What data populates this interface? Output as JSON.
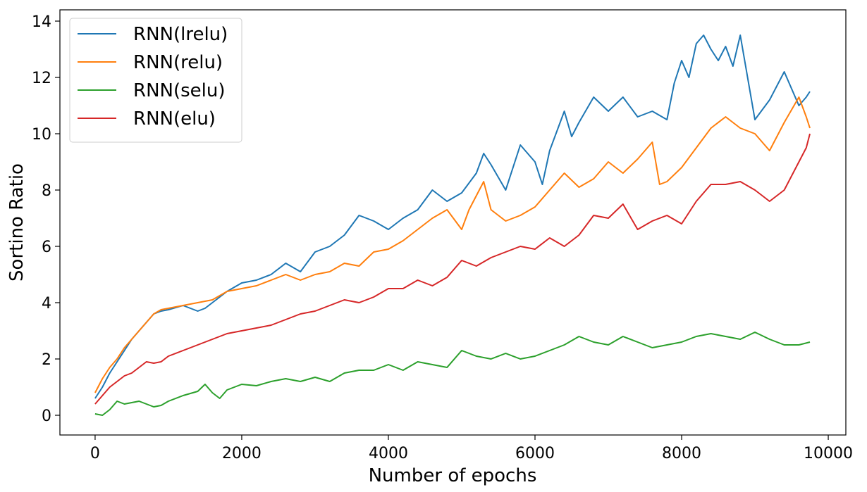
{
  "chart_data": {
    "type": "line",
    "title": "",
    "xlabel": "Number of epochs",
    "ylabel": "Sortino Ratio",
    "xlim": [
      -480,
      10240
    ],
    "ylim": [
      -0.7,
      14.4
    ],
    "xticks": [
      0,
      2000,
      4000,
      6000,
      8000,
      10000
    ],
    "yticks": [
      0,
      2,
      4,
      6,
      8,
      10,
      12,
      14
    ],
    "xtick_labels": [
      "0",
      "2000",
      "4000",
      "6000",
      "8000",
      "10000"
    ],
    "ytick_labels": [
      "0",
      "2",
      "4",
      "6",
      "8",
      "10",
      "12",
      "14"
    ],
    "grid": false,
    "legend_position": "top-left",
    "series": [
      {
        "name": "RNN(lrelu)",
        "color": "#1f77b4",
        "x": [
          0,
          100,
          200,
          300,
          400,
          500,
          600,
          700,
          800,
          900,
          1000,
          1200,
          1400,
          1500,
          1600,
          1800,
          2000,
          2200,
          2400,
          2600,
          2800,
          3000,
          3200,
          3400,
          3600,
          3800,
          4000,
          4200,
          4400,
          4600,
          4800,
          5000,
          5200,
          5300,
          5400,
          5600,
          5800,
          6000,
          6100,
          6200,
          6400,
          6500,
          6600,
          6800,
          7000,
          7200,
          7400,
          7600,
          7800,
          7900,
          8000,
          8100,
          8200,
          8300,
          8400,
          8500,
          8600,
          8700,
          8800,
          9000,
          9200,
          9400,
          9500,
          9600,
          9700,
          9750
        ],
        "y": [
          0.6,
          1.0,
          1.5,
          1.9,
          2.3,
          2.7,
          3.0,
          3.3,
          3.6,
          3.7,
          3.75,
          3.9,
          3.7,
          3.8,
          4.0,
          4.4,
          4.7,
          4.8,
          5.0,
          5.4,
          5.1,
          5.8,
          6.0,
          6.4,
          7.1,
          6.9,
          6.6,
          7.0,
          7.3,
          8.0,
          7.6,
          7.9,
          8.6,
          9.3,
          8.9,
          8.0,
          9.6,
          9.0,
          8.2,
          9.4,
          10.8,
          9.9,
          10.4,
          11.3,
          10.8,
          11.3,
          10.6,
          10.8,
          10.5,
          11.8,
          12.6,
          12.0,
          13.2,
          13.5,
          13.0,
          12.6,
          13.1,
          12.4,
          13.5,
          10.5,
          11.2,
          12.2,
          11.6,
          11.0,
          11.3,
          11.5
        ]
      },
      {
        "name": "RNN(relu)",
        "color": "#ff7f0e",
        "x": [
          0,
          100,
          200,
          300,
          400,
          500,
          600,
          700,
          800,
          900,
          1000,
          1200,
          1400,
          1600,
          1800,
          2000,
          2200,
          2400,
          2600,
          2800,
          3000,
          3200,
          3400,
          3600,
          3800,
          4000,
          4200,
          4400,
          4600,
          4800,
          5000,
          5100,
          5300,
          5400,
          5600,
          5800,
          6000,
          6200,
          6400,
          6600,
          6800,
          7000,
          7200,
          7400,
          7600,
          7700,
          7800,
          8000,
          8200,
          8400,
          8600,
          8800,
          9000,
          9200,
          9400,
          9600,
          9700,
          9750
        ],
        "y": [
          0.8,
          1.3,
          1.7,
          2.0,
          2.4,
          2.7,
          3.0,
          3.3,
          3.6,
          3.75,
          3.8,
          3.9,
          4.0,
          4.1,
          4.4,
          4.5,
          4.6,
          4.8,
          5.0,
          4.8,
          5.0,
          5.1,
          5.4,
          5.3,
          5.8,
          5.9,
          6.2,
          6.6,
          7.0,
          7.3,
          6.6,
          7.3,
          8.3,
          7.3,
          6.9,
          7.1,
          7.4,
          8.0,
          8.6,
          8.1,
          8.4,
          9.0,
          8.6,
          9.1,
          9.7,
          8.2,
          8.3,
          8.8,
          9.5,
          10.2,
          10.6,
          10.2,
          10.0,
          9.4,
          10.4,
          11.3,
          10.6,
          10.2
        ]
      },
      {
        "name": "RNN(selu)",
        "color": "#2ca02c",
        "x": [
          0,
          100,
          200,
          300,
          400,
          500,
          600,
          700,
          800,
          900,
          1000,
          1200,
          1400,
          1500,
          1600,
          1700,
          1800,
          2000,
          2200,
          2400,
          2600,
          2800,
          3000,
          3200,
          3400,
          3600,
          3800,
          4000,
          4200,
          4400,
          4600,
          4800,
          5000,
          5200,
          5400,
          5600,
          5800,
          6000,
          6200,
          6400,
          6600,
          6800,
          7000,
          7200,
          7400,
          7600,
          7800,
          8000,
          8200,
          8400,
          8600,
          8800,
          9000,
          9200,
          9400,
          9600,
          9750
        ],
        "y": [
          0.05,
          0.0,
          0.2,
          0.5,
          0.4,
          0.45,
          0.5,
          0.4,
          0.3,
          0.35,
          0.5,
          0.7,
          0.85,
          1.1,
          0.8,
          0.6,
          0.9,
          1.1,
          1.05,
          1.2,
          1.3,
          1.2,
          1.35,
          1.2,
          1.5,
          1.6,
          1.6,
          1.8,
          1.6,
          1.9,
          1.8,
          1.7,
          2.3,
          2.1,
          2.0,
          2.2,
          2.0,
          2.1,
          2.3,
          2.5,
          2.8,
          2.6,
          2.5,
          2.8,
          2.6,
          2.4,
          2.5,
          2.6,
          2.8,
          2.9,
          2.8,
          2.7,
          2.95,
          2.7,
          2.5,
          2.5,
          2.6
        ]
      },
      {
        "name": "RNN(elu)",
        "color": "#d62728",
        "x": [
          0,
          100,
          200,
          300,
          400,
          500,
          600,
          700,
          800,
          900,
          1000,
          1200,
          1400,
          1600,
          1800,
          2000,
          2200,
          2400,
          2600,
          2800,
          3000,
          3200,
          3400,
          3600,
          3800,
          4000,
          4200,
          4400,
          4600,
          4800,
          5000,
          5200,
          5400,
          5600,
          5800,
          6000,
          6200,
          6400,
          6600,
          6800,
          7000,
          7200,
          7400,
          7600,
          7800,
          8000,
          8200,
          8400,
          8600,
          8800,
          9000,
          9200,
          9400,
          9600,
          9700,
          9750
        ],
        "y": [
          0.4,
          0.7,
          1.0,
          1.2,
          1.4,
          1.5,
          1.7,
          1.9,
          1.85,
          1.9,
          2.1,
          2.3,
          2.5,
          2.7,
          2.9,
          3.0,
          3.1,
          3.2,
          3.4,
          3.6,
          3.7,
          3.9,
          4.1,
          4.0,
          4.2,
          4.5,
          4.5,
          4.8,
          4.6,
          4.9,
          5.5,
          5.3,
          5.6,
          5.8,
          6.0,
          5.9,
          6.3,
          6.0,
          6.4,
          7.1,
          7.0,
          7.5,
          6.6,
          6.9,
          7.1,
          6.8,
          7.6,
          8.2,
          8.2,
          8.3,
          8.0,
          7.6,
          8.0,
          9.0,
          9.5,
          10.0
        ]
      }
    ]
  }
}
